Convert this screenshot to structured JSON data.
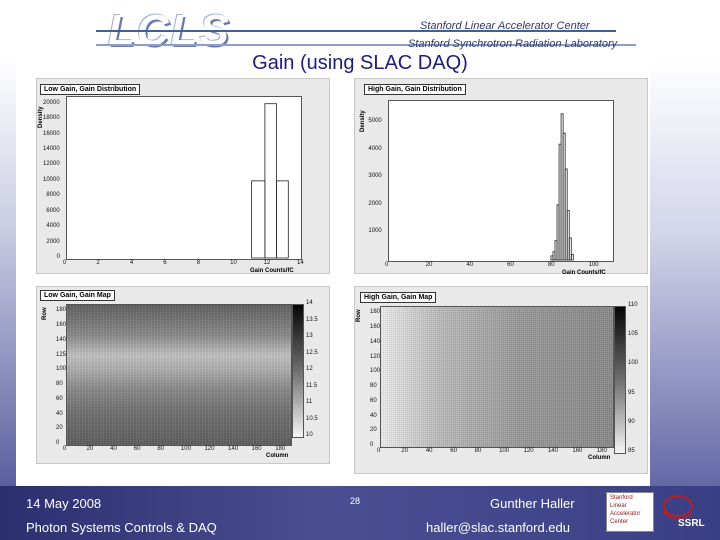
{
  "header": {
    "logo_text": "LCLS",
    "inst_line1": "Stanford Linear Accelerator Center",
    "inst_line2": "Stanford Synchrotron Radiation Laboratory"
  },
  "slide": {
    "title": "Gain (using SLAC DAQ)"
  },
  "chart_data": [
    {
      "type": "histogram",
      "title": "Low Gain, Gain Distribution",
      "xlabel": "Gain Counts/fC",
      "ylabel": "Density",
      "xlim": [
        0,
        14
      ],
      "ylim": [
        0,
        21000
      ],
      "x_ticks": [
        "0",
        "2",
        "4",
        "6",
        "8",
        "10",
        "12",
        "14"
      ],
      "y_ticks": [
        "0",
        "2000",
        "4000",
        "6000",
        "8000",
        "10000",
        "12000",
        "14000",
        "16000",
        "18000",
        "20000"
      ],
      "bins": [
        {
          "x0": 11.1,
          "x1": 11.9,
          "y": 10000
        },
        {
          "x0": 11.9,
          "x1": 12.6,
          "y": 20000
        },
        {
          "x0": 12.6,
          "x1": 13.3,
          "y": 10000
        }
      ]
    },
    {
      "type": "histogram",
      "title": "High Gain, Gain Distribution",
      "xlabel": "Gain Counts/fC",
      "ylabel": "Density",
      "xlim": [
        0,
        110
      ],
      "ylim": [
        0,
        5800
      ],
      "x_ticks": [
        "0",
        "20",
        "40",
        "60",
        "80",
        "100"
      ],
      "y_ticks": [
        "1000",
        "2000",
        "3000",
        "4000",
        "5000"
      ],
      "bins": [
        {
          "x0": 80,
          "x1": 81,
          "y": 150
        },
        {
          "x0": 81,
          "x1": 82,
          "y": 300
        },
        {
          "x0": 82,
          "x1": 83,
          "y": 700
        },
        {
          "x0": 83,
          "x1": 84,
          "y": 2000
        },
        {
          "x0": 84,
          "x1": 85,
          "y": 4200
        },
        {
          "x0": 85,
          "x1": 86,
          "y": 5300
        },
        {
          "x0": 86,
          "x1": 87,
          "y": 4600
        },
        {
          "x0": 87,
          "x1": 88,
          "y": 3300
        },
        {
          "x0": 88,
          "x1": 89,
          "y": 1800
        },
        {
          "x0": 89,
          "x1": 90,
          "y": 800
        },
        {
          "x0": 90,
          "x1": 91,
          "y": 200
        }
      ]
    },
    {
      "type": "heatmap",
      "title": "Low Gain, Gain Map",
      "xlabel": "Column",
      "ylabel": "Row",
      "x_ticks": [
        "0",
        "20",
        "40",
        "60",
        "80",
        "100",
        "120",
        "140",
        "160",
        "180"
      ],
      "y_ticks": [
        "0",
        "20",
        "40",
        "60",
        "80",
        "100",
        "125",
        "140",
        "160",
        "180"
      ],
      "colorbar_ticks": [
        "10",
        "10.5",
        "11",
        "11.5",
        "12",
        "12.5",
        "13",
        "13.5",
        "14"
      ]
    },
    {
      "type": "heatmap",
      "title": "High Gain, Gain Map",
      "xlabel": "Column",
      "ylabel": "Row",
      "x_ticks": [
        "0",
        "20",
        "40",
        "60",
        "80",
        "100",
        "120",
        "140",
        "160",
        "180"
      ],
      "y_ticks": [
        "0",
        "20",
        "40",
        "60",
        "80",
        "100",
        "120",
        "140",
        "160",
        "180"
      ],
      "colorbar_ticks": [
        "85",
        "90",
        "95",
        "100",
        "105",
        "110"
      ]
    }
  ],
  "footer": {
    "date": "14 May 2008",
    "dept": "Photon Systems Controls & DAQ",
    "page": "28",
    "author": "Gunther Haller",
    "email": "haller@slac.stanford.edu",
    "logo_lines": [
      "Stanford",
      "Linear",
      "Accelerator",
      "Center"
    ],
    "ssrl": "SSRL"
  }
}
